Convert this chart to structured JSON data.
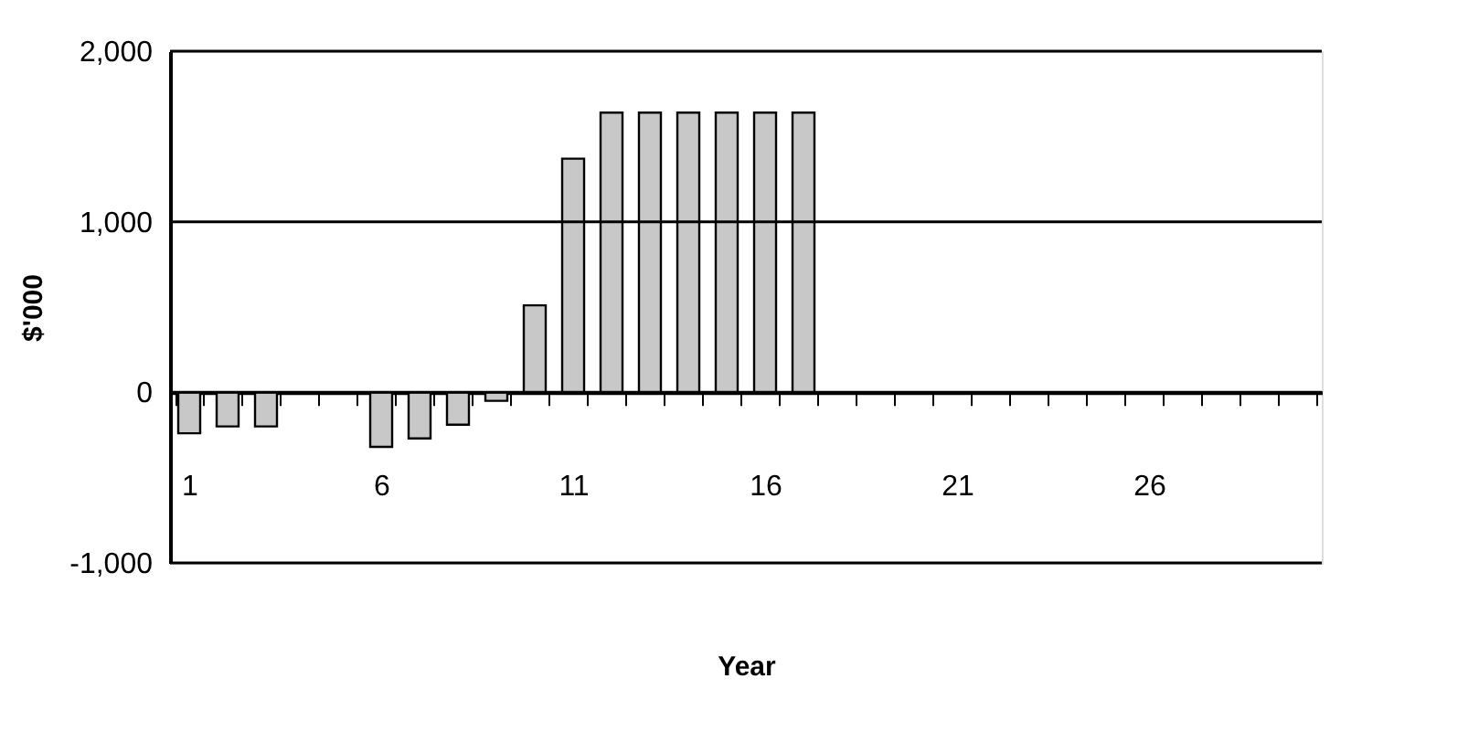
{
  "chart_data": {
    "type": "bar",
    "xlabel": "Year",
    "ylabel": "$'000",
    "categories": [
      "1",
      null,
      null,
      null,
      null,
      "6",
      null,
      null,
      null,
      null,
      "11",
      null,
      null,
      null,
      null,
      "16",
      null,
      null,
      null,
      null,
      "21",
      null,
      null,
      null,
      null,
      "26",
      null,
      null,
      null,
      null
    ],
    "series": [
      {
        "color": "#c8c8c8",
        "values": [
          -240,
          -200,
          -200,
          null,
          null,
          -320,
          -270,
          -190,
          -50,
          510,
          1370,
          1640,
          1640,
          1640,
          1640,
          1640,
          1640,
          null,
          null,
          null,
          null,
          null,
          null,
          null,
          null,
          null,
          null,
          null,
          null,
          null
        ]
      }
    ],
    "ylim": [
      -1000,
      2000
    ],
    "yticks": [
      {
        "value": -1000,
        "label": "-1,000"
      },
      0,
      {
        "value": 1000,
        "label": "1,000"
      },
      {
        "value": 2000,
        "label": "2,000"
      }
    ],
    "grid": "y",
    "legend": false
  }
}
